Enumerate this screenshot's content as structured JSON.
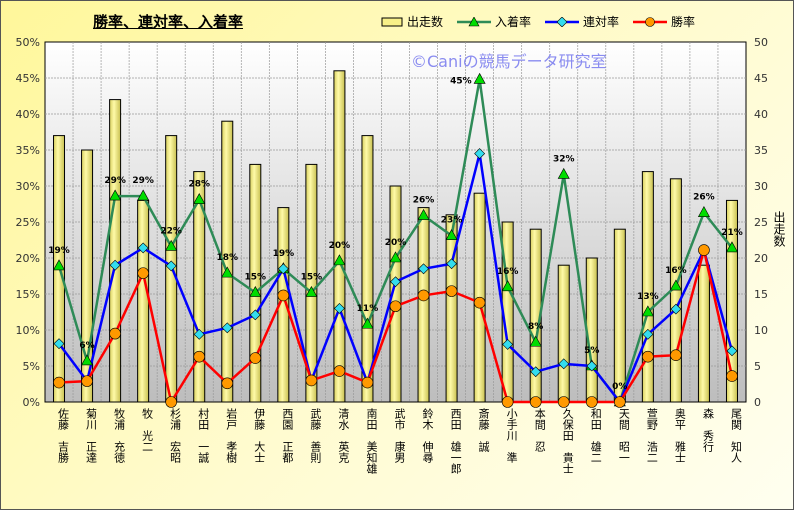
{
  "chart_data": {
    "type": "bar+line",
    "title": "勝率、連対率、入着率",
    "watermark": "©Caniの競馬データ研究室",
    "categories": [
      "佐藤 吉勝",
      "菊川 正達",
      "牧浦 充徳",
      "牧 光二",
      "杉浦 宏昭",
      "村田 一誠",
      "岩戸 孝樹",
      "伊藤 大士",
      "西園 正都",
      "武藤 善則",
      "清水 英克",
      "南田 美知雄",
      "武市 康男",
      "鈴木 伸尋",
      "西田 雄一郎",
      "斎藤 誠",
      "小手川 準",
      "本間 忍",
      "久保田 貴士",
      "和田 雄二",
      "天間 昭一",
      "萱野 浩二",
      "奥平 雅士",
      "森 秀行",
      "尾関 知人"
    ],
    "bar_series": {
      "name": "出走数",
      "axis": "right",
      "color": "#f8f088",
      "values": [
        37,
        35,
        42,
        28,
        37,
        32,
        39,
        33,
        27,
        33,
        46,
        37,
        30,
        27,
        26,
        29,
        25,
        24,
        19,
        20,
        24,
        32,
        31,
        19,
        28
      ]
    },
    "series": [
      {
        "name": "入着率",
        "color": "#2e8b57",
        "marker": "triangle",
        "marker_color": "#00dd00",
        "values": [
          18.9,
          5.7,
          28.6,
          28.6,
          21.6,
          28.1,
          17.9,
          15.2,
          18.5,
          15.2,
          19.6,
          10.8,
          20.0,
          25.9,
          23.1,
          44.8,
          16.0,
          8.3,
          31.6,
          5.0,
          0,
          12.5,
          16.1,
          26.3,
          21.4
        ],
        "labels": [
          "19%",
          "6%",
          "29%",
          "29%",
          "22%",
          "28%",
          "18%",
          "15%",
          "19%",
          "15%",
          "20%",
          "11%",
          "20%",
          "26%",
          "23%",
          "45%",
          "16%",
          "8%",
          "32%",
          "5%",
          "0%",
          "13%",
          "16%",
          "26%",
          "21%"
        ]
      },
      {
        "name": "連対率",
        "color": "#0000ff",
        "marker": "diamond",
        "marker_color": "#33ddee",
        "values": [
          8.1,
          2.9,
          19.0,
          21.4,
          18.9,
          9.4,
          10.3,
          12.1,
          18.5,
          3.0,
          13.0,
          2.7,
          16.7,
          18.5,
          19.2,
          34.5,
          8.0,
          4.2,
          5.3,
          5.0,
          0,
          9.4,
          12.9,
          21.1,
          7.1
        ]
      },
      {
        "name": "勝率",
        "color": "#ff0000",
        "marker": "circle",
        "marker_color": "#ff9900",
        "values": [
          2.7,
          2.9,
          9.5,
          17.9,
          0,
          6.3,
          2.6,
          6.1,
          14.8,
          3.0,
          4.3,
          2.7,
          13.3,
          14.8,
          15.4,
          13.8,
          0,
          0,
          0,
          0,
          0,
          6.3,
          6.5,
          21.1,
          3.6
        ]
      }
    ],
    "y_left": {
      "range": [
        0,
        50
      ],
      "ticks": [
        "0%",
        "5%",
        "10%",
        "15%",
        "20%",
        "25%",
        "30%",
        "35%",
        "40%",
        "45%",
        "50%"
      ]
    },
    "y_right": {
      "label": "出走数",
      "range": [
        0,
        50
      ],
      "ticks": [
        "0",
        "5",
        "10",
        "15",
        "20",
        "25",
        "30",
        "35",
        "40",
        "45",
        "50"
      ]
    },
    "grid": true,
    "legend_position": "top"
  }
}
